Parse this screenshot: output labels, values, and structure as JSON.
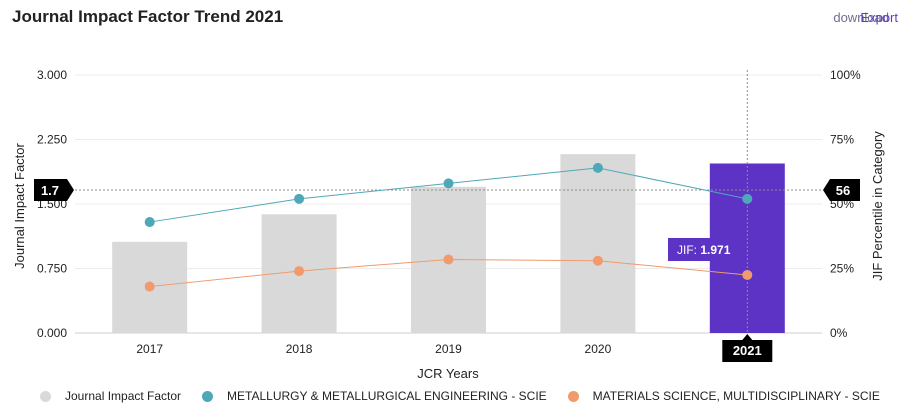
{
  "header": {
    "title": "Journal Impact Factor Trend 2021",
    "download_label": "download",
    "export_label": "Export"
  },
  "chart_data": {
    "type": "bar",
    "title": "Journal Impact Factor Trend 2021",
    "xlabel": "JCR Years",
    "ylabel": "Journal Impact Factor",
    "y2label": "JIF Percentile in Category",
    "categories": [
      "2017",
      "2018",
      "2019",
      "2020",
      "2021"
    ],
    "ylim": [
      0,
      3
    ],
    "y_ticks": [
      "0.000",
      "0.750",
      "1.500",
      "2.250",
      "3.000"
    ],
    "y2lim": [
      0,
      100
    ],
    "y2_ticks": [
      "0%",
      "25%",
      "50%",
      "75%",
      "100%"
    ],
    "series": [
      {
        "name": "Journal Impact Factor",
        "type": "bar",
        "axis": "left",
        "values": [
          1.06,
          1.38,
          1.7,
          2.08,
          1.971
        ],
        "color": "#d9d9d9",
        "highlight_color": "#5c33c4"
      },
      {
        "name": "METALLURGY & METALLURGICAL ENGINEERING - SCIE",
        "type": "line",
        "axis": "right",
        "values": [
          43,
          52,
          58,
          64,
          52
        ],
        "color": "#4ea8b7"
      },
      {
        "name": "MATERIALS SCIENCE, MULTIDISCIPLINARY - SCIE",
        "type": "line",
        "axis": "right",
        "values": [
          18,
          24,
          28.5,
          28,
          22.5
        ],
        "color": "#f09a6e"
      }
    ],
    "highlight_index": 4,
    "crosshair": {
      "left_value": "1.7",
      "right_value": "56",
      "x_label": "2021"
    },
    "tooltip": {
      "label": "JIF:",
      "value": "1.971"
    },
    "legend_position": "bottom"
  }
}
